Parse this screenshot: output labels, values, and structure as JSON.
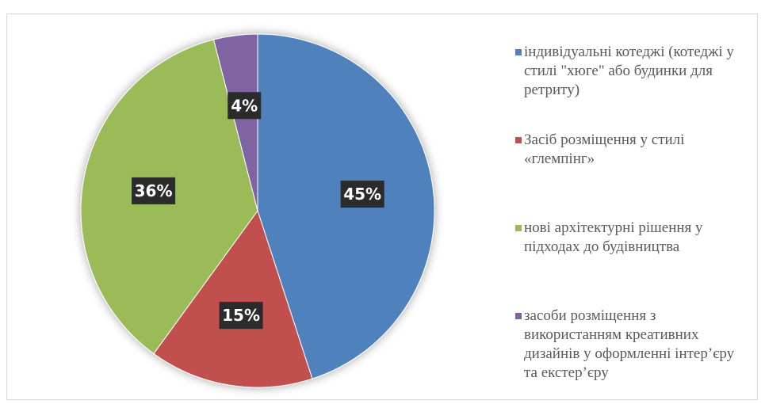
{
  "chart_data": {
    "type": "pie",
    "categories": [
      "індивідуальні котеджі (котеджі у стилі \"хюге\" або будинки для ретриту)",
      "Засіб розміщення у стилі «глемпінг»",
      "нові архітектурні рішення у підходах до будівництва",
      "засоби розміщення з використанням креативних дизайнів у оформленні інтер’єру та екстер’єру"
    ],
    "values": [
      45,
      15,
      36,
      4
    ],
    "data_labels": [
      "45%",
      "15%",
      "36%",
      "4%"
    ],
    "colors": [
      "#4f81bd",
      "#c0504d",
      "#9bbb59",
      "#8064a2"
    ],
    "legend_position": "right"
  }
}
